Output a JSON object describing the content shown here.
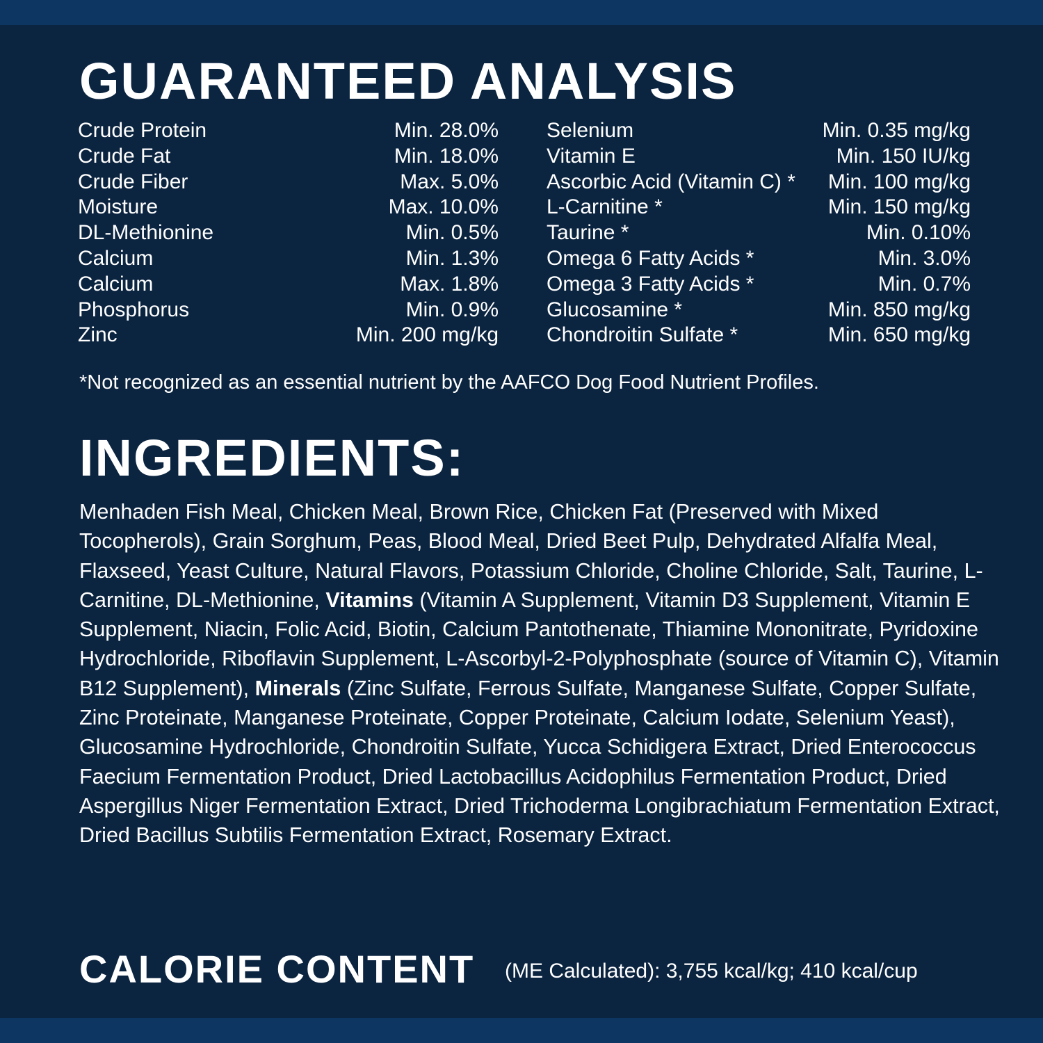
{
  "colors": {
    "background": "#0b2440",
    "band": "#0e3662",
    "text": "#ffffff"
  },
  "guaranteed_analysis": {
    "title": "GUARANTEED ANALYSIS",
    "left": [
      {
        "label": "Crude Protein",
        "value": "Min. 28.0%"
      },
      {
        "label": "Crude Fat",
        "value": "Min. 18.0%"
      },
      {
        "label": "Crude Fiber",
        "value": "Max. 5.0%"
      },
      {
        "label": "Moisture",
        "value": "Max. 10.0%"
      },
      {
        "label": "DL-Methionine",
        "value": "Min. 0.5%"
      },
      {
        "label": "Calcium",
        "value": "Min. 1.3%"
      },
      {
        "label": "Calcium",
        "value": "Max. 1.8%"
      },
      {
        "label": "Phosphorus",
        "value": "Min. 0.9%"
      },
      {
        "label": "Zinc",
        "value": "Min. 200 mg/kg"
      }
    ],
    "right": [
      {
        "label": "Selenium",
        "value": "Min. 0.35 mg/kg"
      },
      {
        "label": "Vitamin E",
        "value": "Min. 150 IU/kg"
      },
      {
        "label": "Ascorbic Acid (Vitamin C) *",
        "value": "Min. 100 mg/kg"
      },
      {
        "label": "L-Carnitine *",
        "value": "Min. 150 mg/kg"
      },
      {
        "label": "Taurine *",
        "value": "Min. 0.10%"
      },
      {
        "label": "Omega 6 Fatty Acids *",
        "value": "Min. 3.0%"
      },
      {
        "label": "Omega 3 Fatty Acids *",
        "value": "Min. 0.7%"
      },
      {
        "label": "Glucosamine *",
        "value": "Min. 850 mg/kg"
      },
      {
        "label": "Chondroitin Sulfate *",
        "value": "Min. 650 mg/kg"
      }
    ],
    "footnote": "*Not recognized as an essential nutrient by the AAFCO Dog Food Nutrient Profiles."
  },
  "ingredients": {
    "title": "INGREDIENTS:",
    "part1": "Menhaden Fish Meal, Chicken Meal, Brown Rice, Chicken Fat (Preserved with Mixed Tocopherols), Grain Sorghum, Peas, Blood Meal, Dried Beet Pulp, Dehydrated Alfalfa Meal, Flaxseed, Yeast Culture, Natural Flavors, Potassium Chloride, Choline Chloride, Salt, Taurine, L-Carnitine, DL-Methionine, ",
    "bold1": "Vitamins",
    "part2": " (Vitamin A Supplement, Vitamin D3 Supplement, Vitamin E Supplement, Niacin, Folic Acid, Biotin, Calcium Pantothenate, Thiamine Mononitrate, Pyridoxine Hydrochloride, Riboflavin Supplement, L-Ascorbyl-2-Polyphosphate (source of Vitamin C), Vitamin B12 Supplement), ",
    "bold2": "Minerals",
    "part3": " (Zinc Sulfate, Ferrous Sulfate, Manganese Sulfate, Copper Sulfate, Zinc Proteinate, Manganese Proteinate, Copper Proteinate, Calcium Iodate, Selenium Yeast), Glucosamine Hydrochloride, Chondroitin Sulfate, Yucca Schidigera Extract, Dried Enterococcus Faecium Fermentation Product, Dried Lactobacillus Acidophilus Fermentation Product, Dried Aspergillus Niger Fermentation Extract, Dried Trichoderma Longibrachiatum Fermentation Extract, Dried Bacillus Subtilis Fermentation Extract, Rosemary Extract."
  },
  "calorie": {
    "title": "CALORIE CONTENT",
    "text": "(ME Calculated): 3,755 kcal/kg; 410 kcal/cup"
  }
}
